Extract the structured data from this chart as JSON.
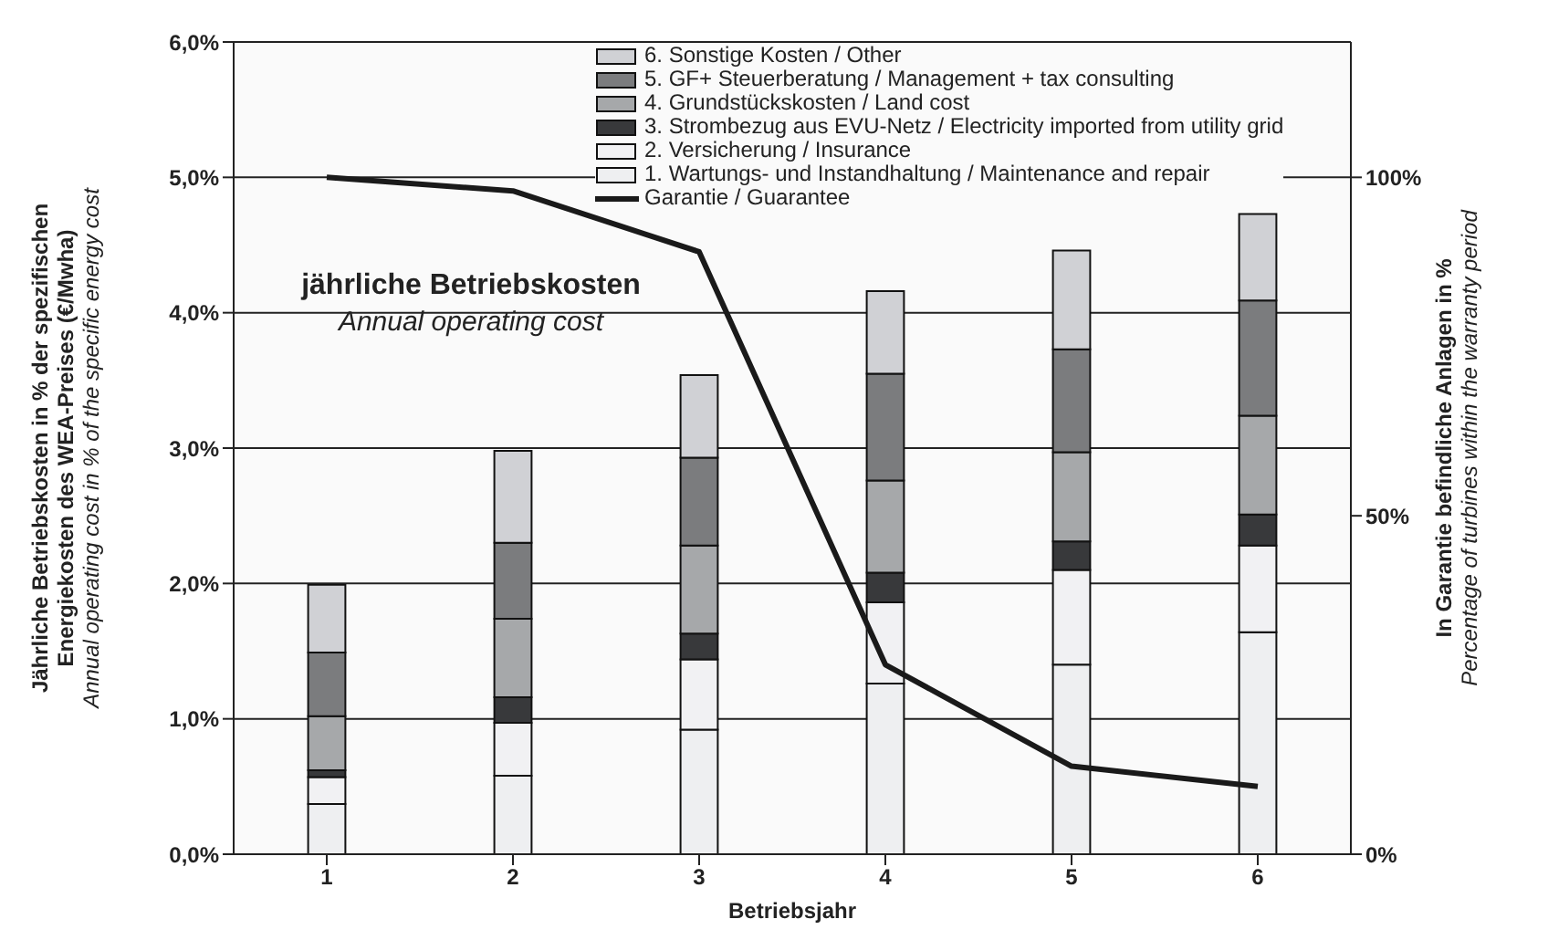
{
  "chart_data": {
    "type": "bar",
    "stacked": true,
    "categories": [
      "1",
      "2",
      "3",
      "4",
      "5",
      "6"
    ],
    "xlabel": "Betriebsjahr",
    "ylabel": "Jährliche Betriebskosten in % der spezifischen\nEnergiekosten des WEA-Preises (€/Mwha)\nAnnual operating cost in % of the specific energy cost",
    "y2label": "In Garantie befindliche Anlagen in %\nPercentage of turbines within the warranty period",
    "annotations": [
      "jährliche Betriebskosten",
      "Annual operating cost"
    ],
    "ylim": [
      0,
      6
    ],
    "yticks": [
      {
        "value": 0,
        "label": "0,0%"
      },
      {
        "value": 1,
        "label": "1,0%"
      },
      {
        "value": 2,
        "label": "2,0%"
      },
      {
        "value": 3,
        "label": "3,0%"
      },
      {
        "value": 4,
        "label": "4,0%"
      },
      {
        "value": 5,
        "label": "5,0%"
      },
      {
        "value": 6,
        "label": "6,0%"
      }
    ],
    "y2lim": [
      0,
      120
    ],
    "y2ticks": [
      {
        "value": 0,
        "label": "0%"
      },
      {
        "value": 50,
        "label": "50%"
      },
      {
        "value": 100,
        "label": "100%"
      }
    ],
    "grid": "y",
    "legend": "top right",
    "marker": "none",
    "line_style": "solid",
    "series": [
      {
        "name": "1. Wartungs- und Instandhaltung / Maintenance and repair",
        "color": "#eeeff1",
        "values": [
          0.37,
          0.58,
          0.92,
          1.26,
          1.4,
          1.64
        ]
      },
      {
        "name": "2. Versicherung / Insurance",
        "color": "#f1f1f3",
        "values": [
          0.2,
          0.39,
          0.52,
          0.6,
          0.7,
          0.64
        ]
      },
      {
        "name": "3. Strombezug aus EVU-Netz / Electricity imported from utility grid",
        "color": "#38393b",
        "values": [
          0.05,
          0.19,
          0.19,
          0.22,
          0.21,
          0.23
        ]
      },
      {
        "name": "4. Grundstückskosten / Land cost",
        "color": "#a6a8aa",
        "values": [
          0.4,
          0.58,
          0.65,
          0.68,
          0.66,
          0.73
        ]
      },
      {
        "name": "5. GF+ Steuerberatung / Management + tax consulting",
        "color": "#7b7c7e",
        "values": [
          0.47,
          0.56,
          0.65,
          0.79,
          0.76,
          0.85
        ]
      },
      {
        "name": "6. Sonstige Kosten / Other",
        "color": "#d0d1d5",
        "values": [
          0.5,
          0.68,
          0.61,
          0.61,
          0.73,
          0.64
        ]
      },
      {
        "name": "Garantie / Guarantee",
        "type": "line",
        "axis": "y2",
        "color": "#1a1a1a",
        "values": [
          100,
          98,
          89,
          28,
          13,
          10
        ]
      }
    ]
  }
}
